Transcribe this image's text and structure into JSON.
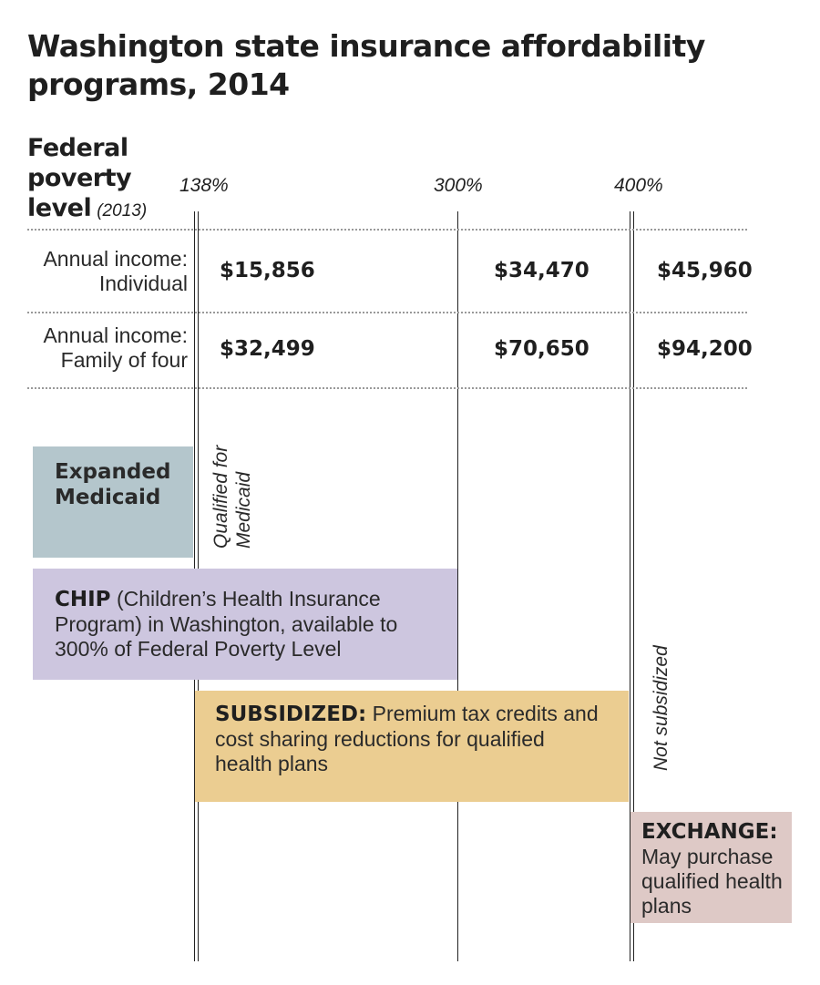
{
  "title": "Washington state insurance affordability programs, 2014",
  "fpl_header": {
    "line1": "Federal",
    "line2": "poverty",
    "line3": "level",
    "year": "(2013)"
  },
  "thresholds": [
    "138%",
    "300%",
    "400%"
  ],
  "rows": [
    {
      "label_line1": "Annual income:",
      "label_line2": "Individual",
      "values": [
        "$15,856",
        "$34,470",
        "$45,960"
      ]
    },
    {
      "label_line1": "Annual income:",
      "label_line2": "Family of four",
      "values": [
        "$32,499",
        "$70,650",
        "$94,200"
      ]
    }
  ],
  "programs": {
    "medicaid": {
      "name": "Expanded Medicaid",
      "note_line1": "Qualified for",
      "note_line2": "Medicaid",
      "color": "#b4c6cc"
    },
    "chip": {
      "name": "CHIP",
      "text": "(Children’s Health Insurance Program) in Washington, available to 300% of Federal Poverty Level",
      "color": "#cdc6df"
    },
    "subsidized": {
      "name": "SUBSIDIZED:",
      "text": "Premium tax credits and cost sharing reductions for qualified health plans",
      "color": "#ebcd91"
    },
    "not_subsidized": "Not subsidized",
    "exchange": {
      "name": "EXCHANGE:",
      "text": "May purchase qualified health plans",
      "color": "#dec9c6"
    }
  }
}
